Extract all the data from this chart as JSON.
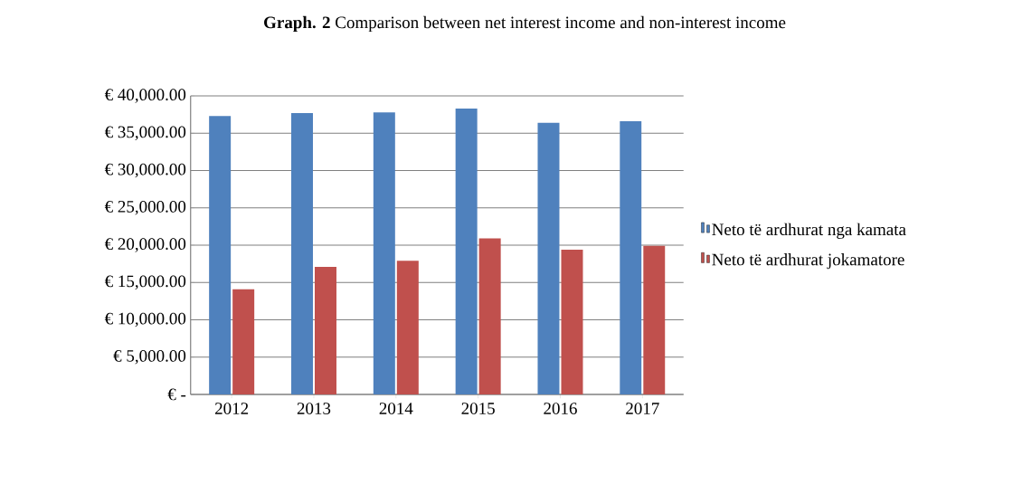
{
  "chart_data": {
    "type": "bar",
    "title": "**Graph. 2** Comparison between net interest income and non-interest income",
    "categories": [
      "2012",
      "2013",
      "2014",
      "2015",
      "2016",
      "2017"
    ],
    "series": [
      {
        "name": "Neto të ardhurat nga kamata",
        "color": "#4f81bd",
        "values": [
          37300,
          37700,
          37800,
          38300,
          36400,
          36600
        ]
      },
      {
        "name": "Neto të ardhurat jokamatore",
        "color": "#c0504d",
        "values": [
          14100,
          17100,
          17900,
          20900,
          19400,
          19900
        ]
      }
    ],
    "ylim": [
      0,
      40000
    ],
    "yticks": [
      {
        "value": 0,
        "label": "€ -"
      },
      {
        "value": 5000,
        "label": "€ 5,000.00"
      },
      {
        "value": 10000,
        "label": "€ 10,000.00"
      },
      {
        "value": 15000,
        "label": "€ 15,000.00"
      },
      {
        "value": 20000,
        "label": "€ 20,000.00"
      },
      {
        "value": 25000,
        "label": "€ 25,000.00"
      },
      {
        "value": 30000,
        "label": "€ 30,000.00"
      },
      {
        "value": 35000,
        "label": "€ 35,000.00"
      },
      {
        "value": 40000,
        "label": "€ 40,000.00"
      }
    ],
    "grid": "y",
    "legend": "right"
  }
}
